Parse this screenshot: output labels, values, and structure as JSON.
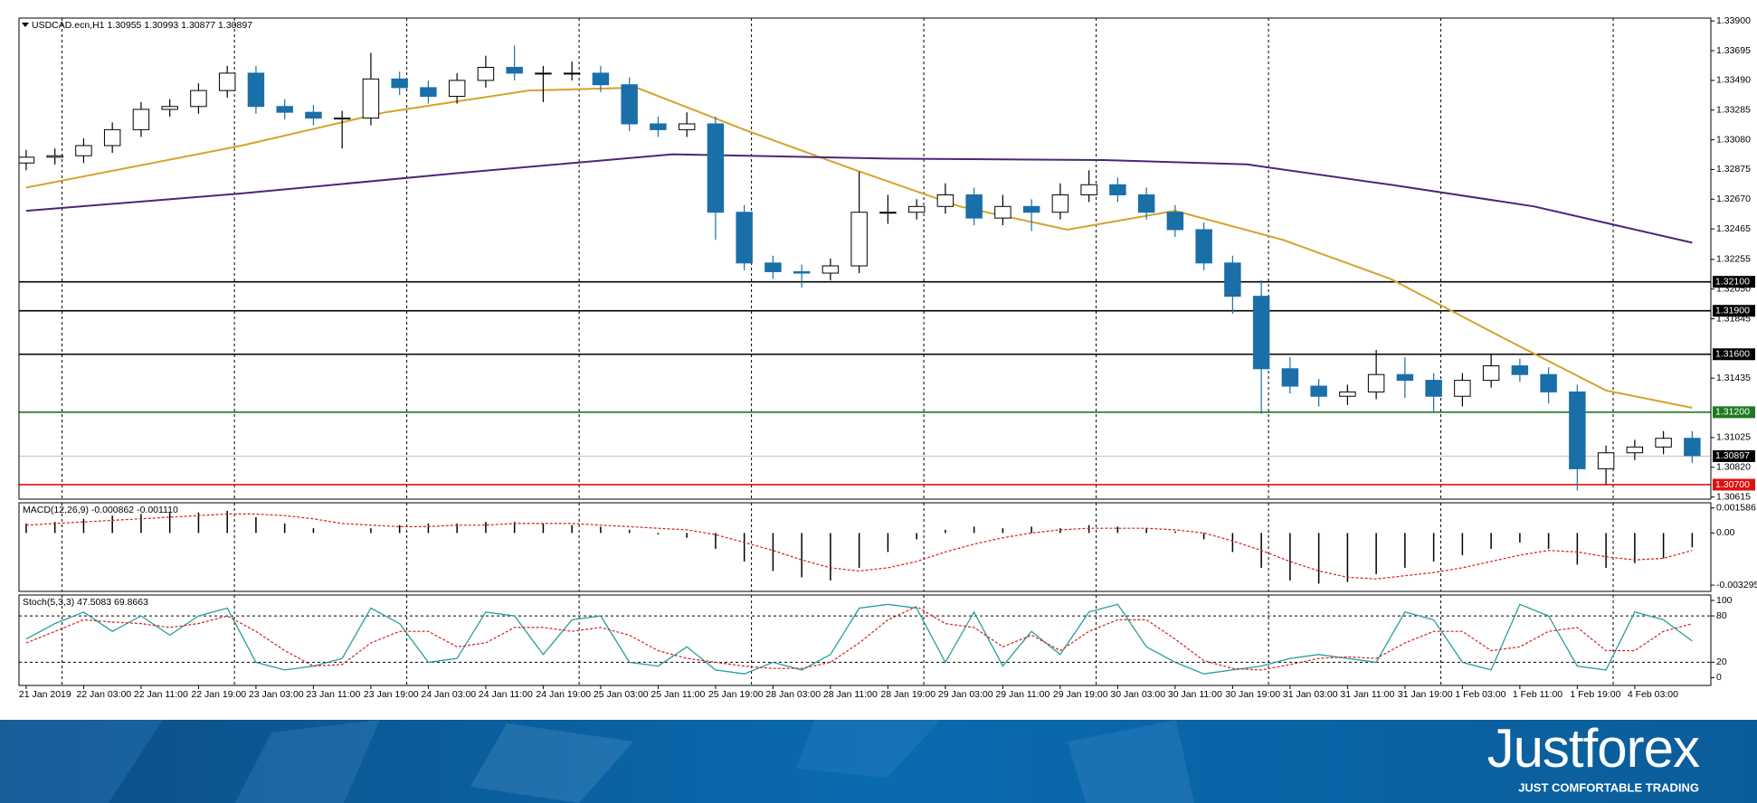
{
  "branding": {
    "name": "Justforex",
    "tagline": "JUST COMFORTABLE TRADING"
  },
  "chart_data": [
    {
      "type": "candlestick",
      "title": "USDCAD.ecn,H1  1.30955 1.30993 1.30877 1.30897",
      "xlim": [
        -1,
        234.6
      ],
      "ylim": [
        1.306,
        1.3392
      ],
      "yticks": [
        {
          "value": 1.339,
          "label": "1.33900"
        },
        1.33695,
        {
          "value": 1.3349,
          "label": "1.33490"
        },
        1.33285,
        {
          "value": 1.3308,
          "label": "1.33080"
        },
        1.32875,
        {
          "value": 1.3267,
          "label": "1.32670"
        },
        1.32465,
        1.32255,
        {
          "value": 1.3205,
          "label": "1.32050"
        },
        1.31845,
        1.31435,
        1.31025,
        {
          "value": 1.3082,
          "label": "1.30820"
        },
        1.30615
      ],
      "day_separators": [
        5,
        29,
        53,
        77,
        101,
        125,
        149,
        173,
        197,
        221
      ],
      "up_color": "#ffffff",
      "down_color": "#1b6fa8",
      "x": [
        0,
        4,
        8,
        12,
        16,
        20,
        24,
        28,
        32,
        36,
        40,
        44,
        48,
        52,
        56,
        60,
        64,
        68,
        72,
        76,
        80,
        84,
        88,
        92,
        96,
        100,
        104,
        108,
        112,
        116,
        120,
        124,
        128,
        132,
        136,
        140,
        144,
        148,
        152,
        156,
        160,
        164,
        168,
        172,
        176,
        180,
        184,
        188,
        192,
        196,
        200,
        204,
        208,
        212,
        216,
        220,
        224,
        228,
        232
      ],
      "open": [
        1.3292,
        1.3296,
        1.3297,
        1.3304,
        1.3315,
        1.3329,
        1.3331,
        1.3342,
        1.3354,
        1.3331,
        1.3327,
        1.3323,
        1.3323,
        1.335,
        1.3344,
        1.3338,
        1.3349,
        1.3358,
        1.3354,
        1.3354,
        1.3354,
        1.3346,
        1.3319,
        1.3315,
        1.3319,
        1.3258,
        1.3223,
        1.3217,
        1.3216,
        1.3221,
        1.3258,
        1.3258,
        1.3262,
        1.327,
        1.3254,
        1.3262,
        1.3258,
        1.327,
        1.3277,
        1.327,
        1.3258,
        1.3246,
        1.3223,
        1.32,
        1.315,
        1.3138,
        1.3131,
        1.3134,
        1.3146,
        1.3142,
        1.3131,
        1.3142,
        1.3152,
        1.3146,
        1.3134,
        1.3081,
        1.3092,
        1.3096,
        1.3102
      ],
      "high": [
        1.3301,
        1.3302,
        1.3309,
        1.332,
        1.3334,
        1.3336,
        1.3347,
        1.3359,
        1.3359,
        1.3336,
        1.3332,
        1.3328,
        1.3368,
        1.3355,
        1.3349,
        1.3354,
        1.3366,
        1.3373,
        1.3359,
        1.3362,
        1.3359,
        1.3351,
        1.3324,
        1.3327,
        1.3324,
        1.3263,
        1.3228,
        1.3222,
        1.3226,
        1.3286,
        1.327,
        1.3267,
        1.3278,
        1.3275,
        1.327,
        1.3267,
        1.3278,
        1.3287,
        1.3282,
        1.3275,
        1.3263,
        1.3251,
        1.3228,
        1.3211,
        1.3158,
        1.3143,
        1.3139,
        1.3163,
        1.3158,
        1.3147,
        1.3147,
        1.316,
        1.3157,
        1.3151,
        1.3139,
        1.3097,
        1.3101,
        1.3107,
        1.3107
      ],
      "low": [
        1.3287,
        1.3291,
        1.3292,
        1.3299,
        1.331,
        1.3324,
        1.3326,
        1.3337,
        1.3326,
        1.3322,
        1.3318,
        1.3302,
        1.3318,
        1.3339,
        1.3333,
        1.3333,
        1.3344,
        1.3349,
        1.3334,
        1.3349,
        1.3341,
        1.3314,
        1.331,
        1.331,
        1.3239,
        1.3218,
        1.3212,
        1.3206,
        1.3211,
        1.3216,
        1.325,
        1.3253,
        1.3257,
        1.3249,
        1.3249,
        1.3245,
        1.3253,
        1.3265,
        1.3265,
        1.3253,
        1.3241,
        1.3218,
        1.3188,
        1.3119,
        1.3133,
        1.3124,
        1.3125,
        1.3129,
        1.313,
        1.312,
        1.3124,
        1.3137,
        1.3141,
        1.3126,
        1.3066,
        1.307,
        1.3087,
        1.3091,
        1.3085
      ],
      "close": [
        1.3296,
        1.3297,
        1.3304,
        1.3315,
        1.3329,
        1.3331,
        1.3342,
        1.3354,
        1.3331,
        1.3327,
        1.3323,
        1.3323,
        1.335,
        1.3344,
        1.3338,
        1.3349,
        1.3358,
        1.3354,
        1.3354,
        1.3354,
        1.3346,
        1.3319,
        1.3315,
        1.3319,
        1.3258,
        1.3223,
        1.3217,
        1.3216,
        1.3221,
        1.3258,
        1.3258,
        1.3262,
        1.327,
        1.3254,
        1.3262,
        1.3258,
        1.327,
        1.3277,
        1.327,
        1.3258,
        1.3246,
        1.3223,
        1.32,
        1.315,
        1.3138,
        1.3131,
        1.3134,
        1.3146,
        1.3142,
        1.3131,
        1.3142,
        1.3152,
        1.3146,
        1.3134,
        1.3081,
        1.3092,
        1.3096,
        1.3102,
        1.309
      ],
      "moving_averages": [
        {
          "color": "#d4a32c",
          "x": [
            0,
            30,
            50,
            70,
            85,
            100,
            115,
            130,
            145,
            160,
            175,
            190,
            205,
            220,
            232
          ],
          "values": [
            1.3275,
            1.3304,
            1.3327,
            1.3342,
            1.3344,
            1.3315,
            1.3288,
            1.3262,
            1.3246,
            1.3259,
            1.3239,
            1.3212,
            1.3173,
            1.3135,
            1.3123
          ]
        },
        {
          "color": "#4b2677",
          "x": [
            0,
            30,
            60,
            90,
            120,
            150,
            170,
            190,
            210,
            232
          ],
          "values": [
            1.3259,
            1.3271,
            1.3285,
            1.3298,
            1.3295,
            1.3294,
            1.3291,
            1.3277,
            1.3262,
            1.3237
          ]
        }
      ],
      "levels": [
        {
          "value": 1.321,
          "label": "1.32100",
          "color": "#000000"
        },
        {
          "value": 1.319,
          "label": "1.31900",
          "color": "#000000"
        },
        {
          "value": 1.316,
          "label": "1.31600",
          "color": "#000000"
        },
        {
          "value": 1.312,
          "label": "1.31200",
          "color": "#1e7a1e"
        },
        {
          "value": 1.307,
          "label": "1.30700",
          "color": "#e01010"
        }
      ],
      "current_price": {
        "value": 1.30897,
        "label": "1.30897",
        "color": "#c0c0c0"
      }
    },
    {
      "type": "macd",
      "title": "MACD(12,26,9) -0.000862 -0.001110",
      "xlim": [
        -1,
        234.6
      ],
      "ylim": [
        -0.00369,
        0.00191
      ],
      "yticks": [
        0.001586,
        {
          "value": 0,
          "label": "0.00"
        },
        -0.003295
      ],
      "x": [
        0,
        4,
        8,
        12,
        16,
        20,
        24,
        28,
        32,
        36,
        40,
        44,
        48,
        52,
        56,
        60,
        64,
        68,
        72,
        76,
        80,
        84,
        88,
        92,
        96,
        100,
        104,
        108,
        112,
        116,
        120,
        124,
        128,
        132,
        136,
        140,
        144,
        148,
        152,
        156,
        160,
        164,
        168,
        172,
        176,
        180,
        184,
        188,
        192,
        196,
        200,
        204,
        208,
        212,
        216,
        220,
        224,
        228,
        232
      ],
      "histogram": [
        0.0006,
        0.0007,
        0.0009,
        0.0011,
        0.0012,
        0.0013,
        0.0013,
        0.0014,
        0.001,
        0.0006,
        0.0003,
        0.0,
        0.0003,
        0.0005,
        0.0006,
        0.0006,
        0.0007,
        0.0007,
        0.0006,
        0.0005,
        0.0004,
        0.0002,
        -0.0001,
        -0.0003,
        -0.001,
        -0.0018,
        -0.0024,
        -0.0028,
        -0.003,
        -0.0022,
        -0.0012,
        -0.0004,
        0.0002,
        0.0004,
        0.0003,
        0.0004,
        0.0003,
        0.0005,
        0.0004,
        0.0003,
        0.0001,
        -0.0004,
        -0.0012,
        -0.0022,
        -0.003,
        -0.0032,
        -0.0031,
        -0.0026,
        -0.0022,
        -0.0018,
        -0.0014,
        -0.001,
        -0.0006,
        -0.001,
        -0.002,
        -0.0022,
        -0.0019,
        -0.0016,
        -0.0009
      ],
      "histogram_color": "#000000",
      "signal": [
        0.0005,
        0.0006,
        0.0007,
        0.0008,
        0.0009,
        0.001,
        0.0011,
        0.0012,
        0.0012,
        0.0011,
        0.0009,
        0.0006,
        0.0005,
        0.0004,
        0.0004,
        0.0005,
        0.0005,
        0.0006,
        0.0006,
        0.0006,
        0.0005,
        0.0004,
        0.0003,
        0.0002,
        -0.0001,
        -0.0006,
        -0.0011,
        -0.0017,
        -0.0022,
        -0.0024,
        -0.0022,
        -0.0018,
        -0.0012,
        -0.0007,
        -0.0003,
        0.0,
        0.0002,
        0.0003,
        0.0003,
        0.0003,
        0.0002,
        0.0,
        -0.0005,
        -0.0011,
        -0.0018,
        -0.0024,
        -0.0028,
        -0.0029,
        -0.0027,
        -0.0025,
        -0.0022,
        -0.0018,
        -0.0014,
        -0.0011,
        -0.0012,
        -0.0015,
        -0.0017,
        -0.0016,
        -0.0011
      ],
      "signal_color": "#d02020"
    },
    {
      "type": "stochastic",
      "title": "Stoch(5,3,3) 47.5083 69.8663",
      "xlim": [
        -1,
        234.6
      ],
      "ylim": [
        -10,
        107
      ],
      "yticks": [
        100,
        80,
        20,
        0
      ],
      "levels": [
        80,
        20
      ],
      "x": [
        0,
        4,
        8,
        12,
        16,
        20,
        24,
        28,
        32,
        36,
        40,
        44,
        48,
        52,
        56,
        60,
        64,
        68,
        72,
        76,
        80,
        84,
        88,
        92,
        96,
        100,
        104,
        108,
        112,
        116,
        120,
        124,
        128,
        132,
        136,
        140,
        144,
        148,
        152,
        156,
        160,
        164,
        168,
        172,
        176,
        180,
        184,
        188,
        192,
        196,
        200,
        204,
        208,
        212,
        216,
        220,
        224,
        228,
        232
      ],
      "k": [
        50,
        70,
        85,
        60,
        80,
        55,
        80,
        90,
        20,
        10,
        15,
        25,
        90,
        70,
        20,
        25,
        85,
        80,
        30,
        75,
        80,
        20,
        15,
        40,
        10,
        5,
        20,
        10,
        30,
        90,
        95,
        90,
        20,
        85,
        15,
        60,
        30,
        85,
        95,
        40,
        20,
        5,
        10,
        15,
        25,
        30,
        25,
        20,
        85,
        75,
        20,
        10,
        95,
        80,
        15,
        10,
        85,
        75,
        47.5
      ],
      "k_color": "#2a9d9d",
      "d": [
        45,
        60,
        75,
        72,
        70,
        65,
        70,
        80,
        60,
        35,
        15,
        17,
        45,
        60,
        60,
        40,
        45,
        65,
        65,
        60,
        65,
        55,
        35,
        25,
        20,
        15,
        12,
        12,
        20,
        45,
        75,
        92,
        70,
        65,
        40,
        55,
        35,
        60,
        75,
        75,
        50,
        22,
        12,
        10,
        17,
        25,
        27,
        25,
        45,
        60,
        60,
        35,
        40,
        60,
        65,
        35,
        35,
        60,
        69.9
      ],
      "d_color": "#d02020",
      "xticks": [
        {
          "value": 0,
          "label": "21 Jan 2019"
        },
        {
          "value": 8,
          "label": "22 Jan 03:00"
        },
        {
          "value": 16,
          "label": "22 Jan 11:00"
        },
        {
          "value": 24,
          "label": "22 Jan 19:00"
        },
        {
          "value": 32,
          "label": "23 Jan 03:00"
        },
        {
          "value": 40,
          "label": "23 Jan 11:00"
        },
        {
          "value": 48,
          "label": "23 Jan 19:00"
        },
        {
          "value": 56,
          "label": "24 Jan 03:00"
        },
        {
          "value": 64,
          "label": "24 Jan 11:00"
        },
        {
          "value": 72,
          "label": "24 Jan 19:00"
        },
        {
          "value": 80,
          "label": "25 Jan 03:00"
        },
        {
          "value": 88,
          "label": "25 Jan 11:00"
        },
        {
          "value": 96,
          "label": "25 Jan 19:00"
        },
        {
          "value": 104,
          "label": "28 Jan 03:00"
        },
        {
          "value": 112,
          "label": "28 Jan 11:00"
        },
        {
          "value": 120,
          "label": "28 Jan 19:00"
        },
        {
          "value": 128,
          "label": "29 Jan 03:00"
        },
        {
          "value": 136,
          "label": "29 Jan 11:00"
        },
        {
          "value": 144,
          "label": "29 Jan 19:00"
        },
        {
          "value": 152,
          "label": "30 Jan 03:00"
        },
        {
          "value": 160,
          "label": "30 Jan 11:00"
        },
        {
          "value": 168,
          "label": "30 Jan 19:00"
        },
        {
          "value": 176,
          "label": "31 Jan 03:00"
        },
        {
          "value": 184,
          "label": "31 Jan 11:00"
        },
        {
          "value": 192,
          "label": "31 Jan 19:00"
        },
        {
          "value": 200,
          "label": "1 Feb 03:00"
        },
        {
          "value": 208,
          "label": "1 Feb 11:00"
        },
        {
          "value": 216,
          "label": "1 Feb 19:00"
        },
        {
          "value": 224,
          "label": "4 Feb 03:00"
        }
      ]
    }
  ]
}
